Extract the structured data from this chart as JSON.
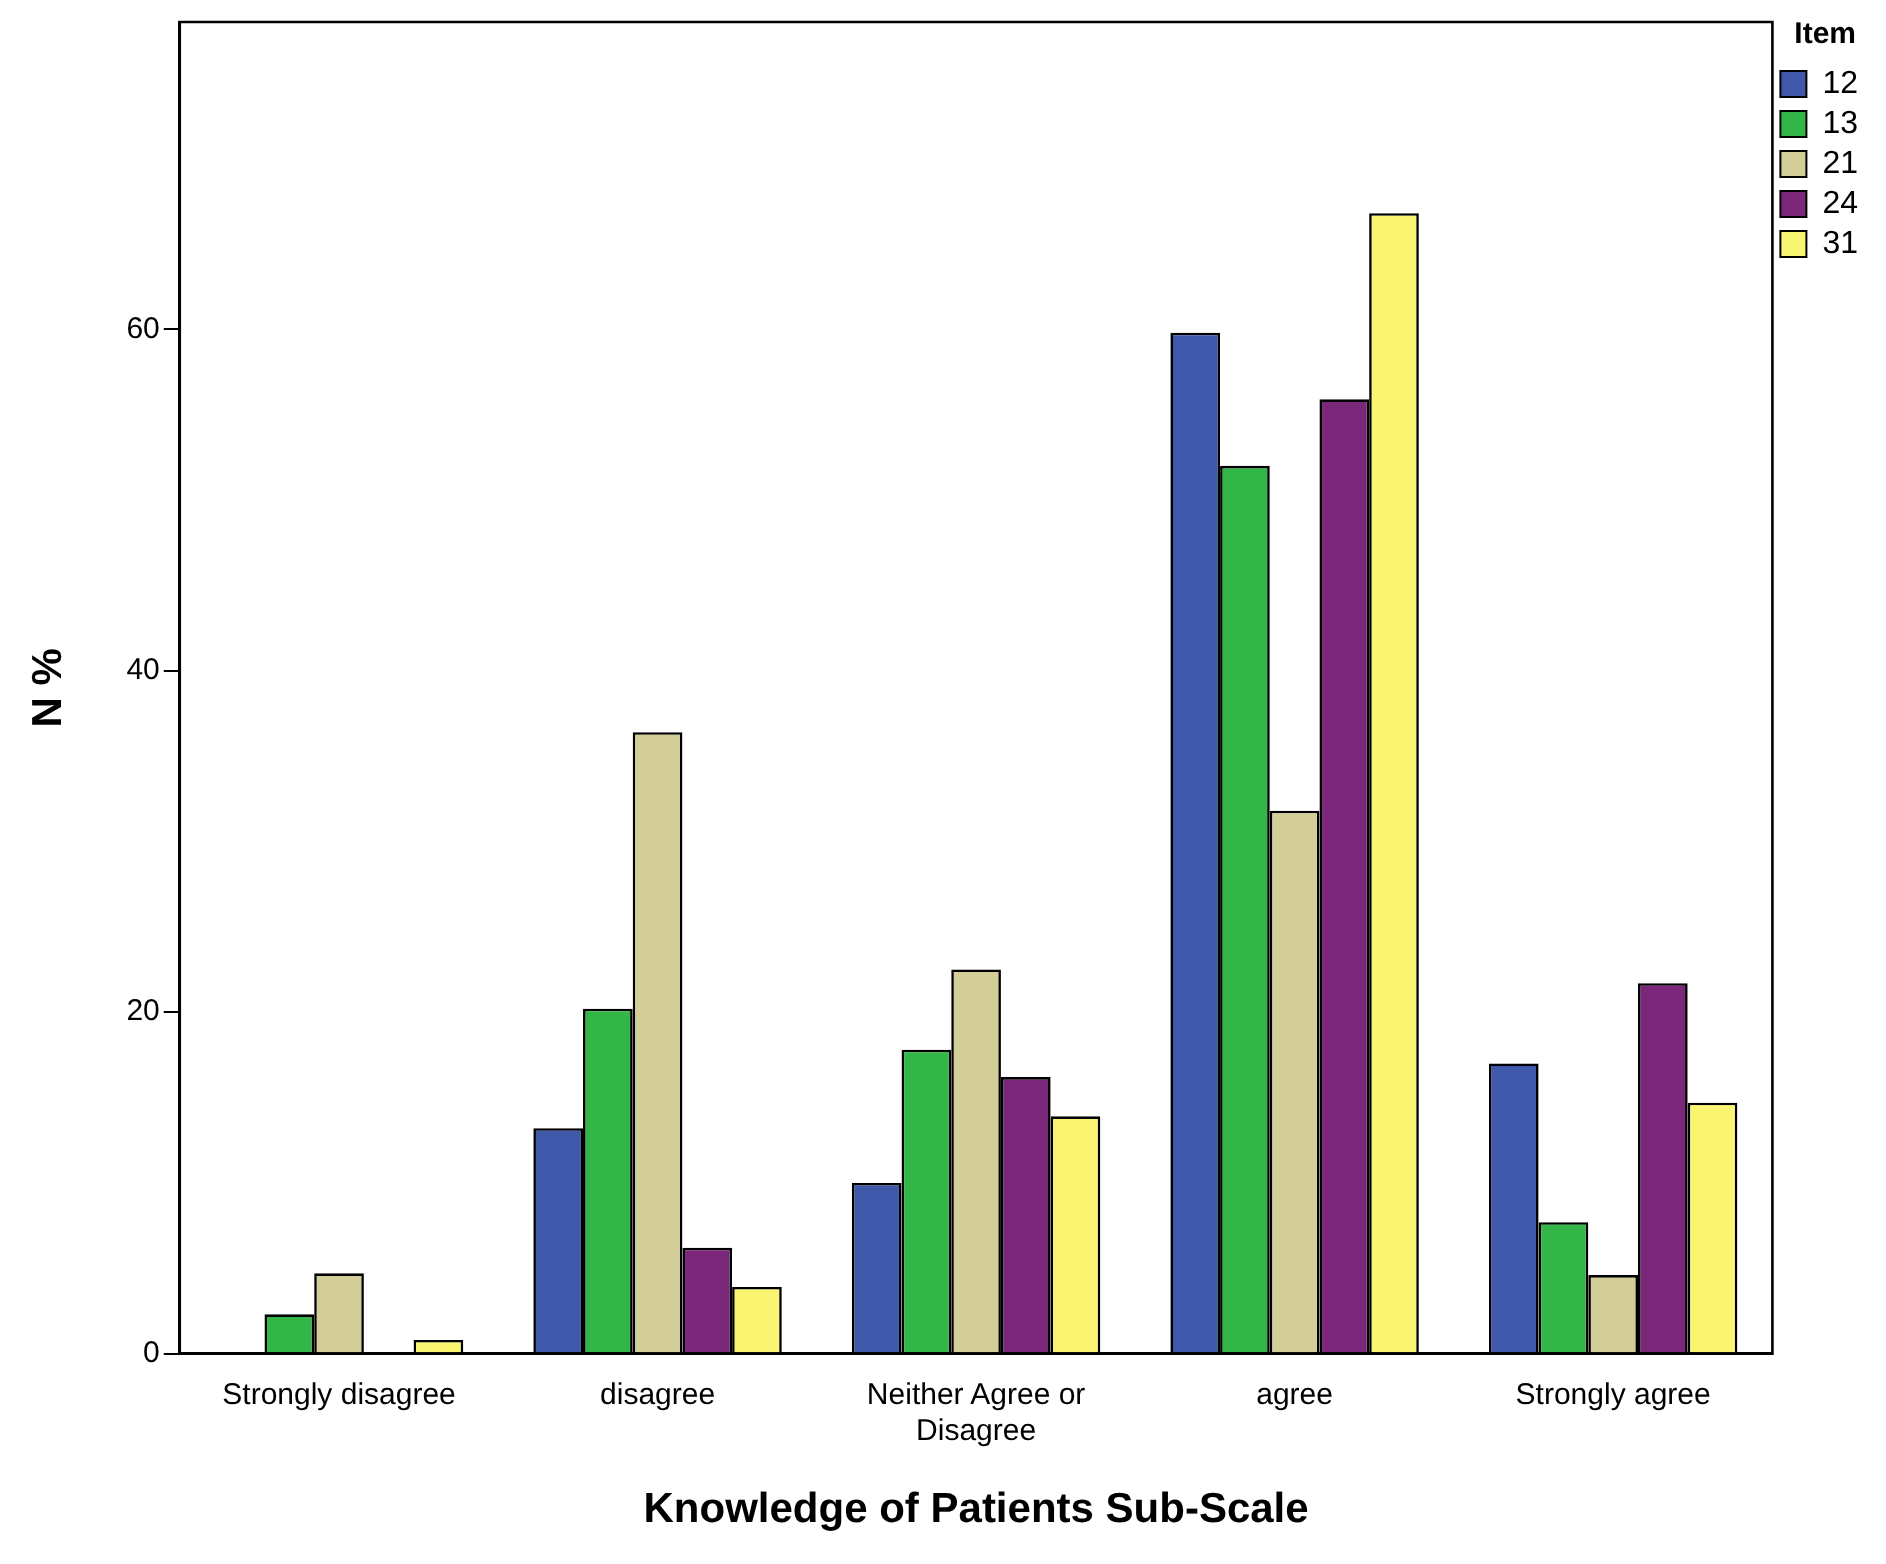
{
  "chart_data": {
    "type": "bar",
    "xlabel": "Knowledge of Patients Sub-Scale",
    "ylabel": "N %",
    "legend_title": "Item",
    "categories": [
      "Strongly disagree",
      "disagree",
      "Neither Agree or Disagree",
      "agree",
      "Strongly agree"
    ],
    "series": [
      {
        "name": "12",
        "color": "#3f58a9",
        "values": [
          0,
          13.2,
          10.0,
          59.8,
          17.0
        ]
      },
      {
        "name": "13",
        "color": "#31b647",
        "values": [
          2.3,
          20.2,
          17.8,
          52.0,
          7.7
        ]
      },
      {
        "name": "21",
        "color": "#d3cd98",
        "values": [
          4.7,
          36.4,
          22.5,
          31.8,
          4.6
        ]
      },
      {
        "name": "24",
        "color": "#7b287b",
        "values": [
          0,
          6.2,
          16.2,
          55.9,
          21.7
        ]
      },
      {
        "name": "31",
        "color": "#faf570",
        "values": [
          0.8,
          3.9,
          13.9,
          66.8,
          14.7
        ]
      }
    ],
    "ylim": [
      0,
      78
    ],
    "yticks": [
      0,
      20,
      40,
      60
    ],
    "grid": false,
    "legend": "right"
  }
}
